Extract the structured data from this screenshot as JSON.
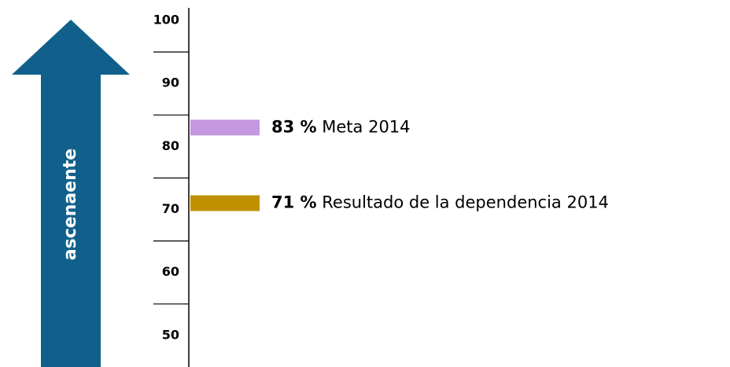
{
  "chart_data": {
    "type": "bar",
    "arrow_label": "ascenaente",
    "arrow_color": "#11608c",
    "ylim": [
      45,
      102
    ],
    "yticks": [
      100,
      90,
      80,
      70,
      60,
      50
    ],
    "series": [
      {
        "name": "Meta 2014",
        "color": "#c497e0",
        "values": [
          83
        ],
        "value_labels": [
          "83 %"
        ]
      },
      {
        "name": "Resultado de la dependencia 2014",
        "color": "#c09000",
        "values": [
          71
        ],
        "value_labels": [
          "71 %"
        ]
      }
    ]
  }
}
